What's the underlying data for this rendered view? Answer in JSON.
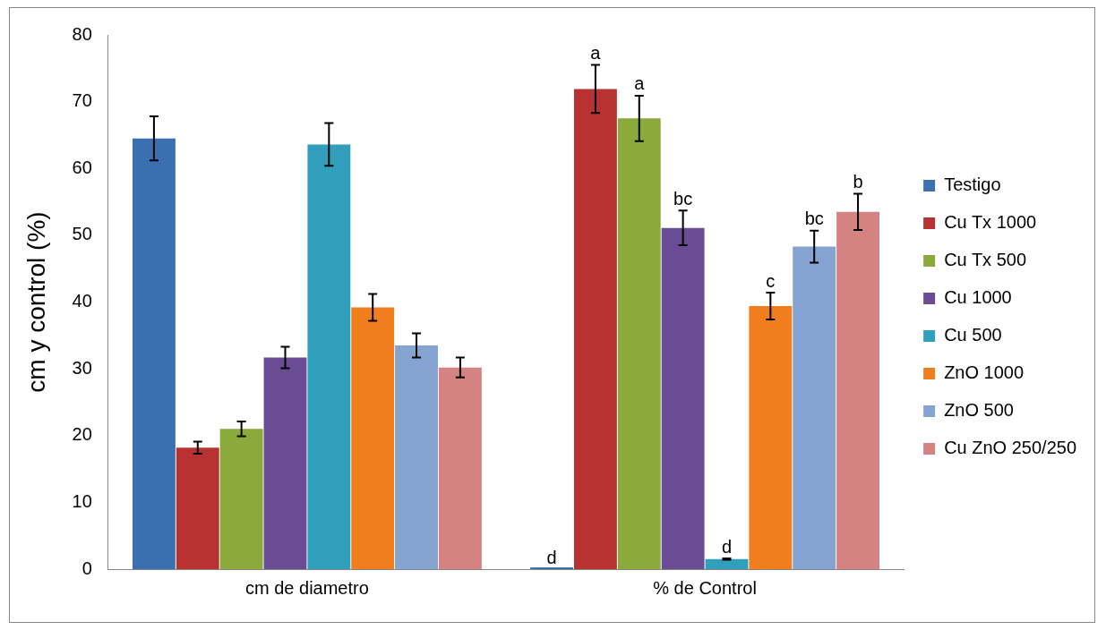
{
  "chart_data": {
    "type": "bar",
    "ylabel": "cm y control (%)",
    "categories": [
      "cm de diametro",
      "% de Control"
    ],
    "ylim": [
      0,
      80
    ],
    "yticks": [
      0,
      10,
      20,
      30,
      40,
      50,
      60,
      70,
      80
    ],
    "grid": false,
    "legend": "right",
    "series": [
      {
        "name": "Testigo",
        "color": "#3a6fb0",
        "values": [
          64.5,
          0
        ],
        "errors": [
          3.3,
          null
        ],
        "value_labels": [
          null,
          "d"
        ]
      },
      {
        "name": "Cu Tx 1000",
        "color": "#b83232",
        "values": [
          18.2,
          71.9
        ],
        "errors": [
          0.9,
          3.6
        ],
        "value_labels": [
          null,
          "a"
        ]
      },
      {
        "name": "Cu Tx 500",
        "color": "#8aaa3c",
        "values": [
          21,
          67.5
        ],
        "errors": [
          1.1,
          3.4
        ],
        "value_labels": [
          null,
          "a"
        ]
      },
      {
        "name": "Cu 1000",
        "color": "#6a4c94",
        "values": [
          31.7,
          51.1
        ],
        "errors": [
          1.6,
          2.6
        ],
        "value_labels": [
          null,
          "bc"
        ]
      },
      {
        "name": "Cu 500",
        "color": "#319fbb",
        "values": [
          63.6,
          1.5
        ],
        "errors": [
          3.2,
          0.1
        ],
        "value_labels": [
          null,
          "d"
        ]
      },
      {
        "name": "ZnO 1000",
        "color": "#f07e1e",
        "values": [
          39.2,
          39.4
        ],
        "errors": [
          2,
          2
        ],
        "value_labels": [
          null,
          "c"
        ]
      },
      {
        "name": "ZnO 500",
        "color": "#85a3d0",
        "values": [
          33.5,
          48.3
        ],
        "errors": [
          1.8,
          2.4
        ],
        "value_labels": [
          null,
          "bc"
        ]
      },
      {
        "name": "Cu ZnO 250/250",
        "color": "#d48282",
        "values": [
          30.2,
          53.5
        ],
        "errors": [
          1.5,
          2.7
        ],
        "value_labels": [
          null,
          "b"
        ]
      }
    ]
  }
}
